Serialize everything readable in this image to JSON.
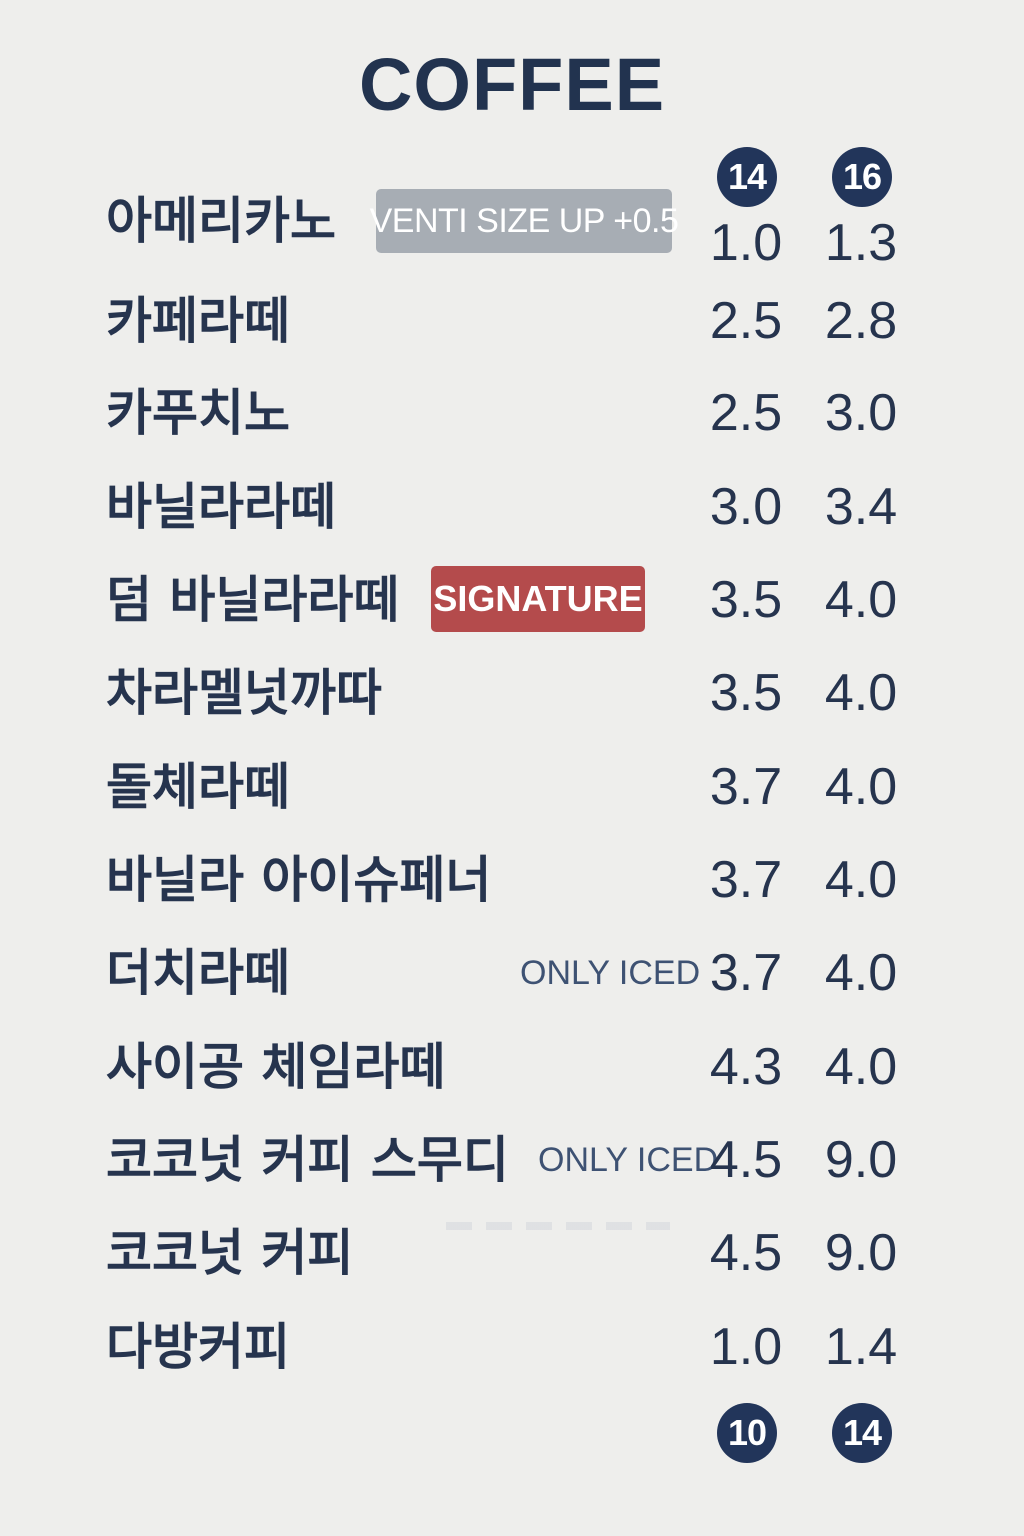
{
  "menu": {
    "title": "COFFEE",
    "size_headers_top": [
      "14",
      "16"
    ],
    "size_headers_bottom": [
      "10",
      "14"
    ],
    "venti_badge": "VENTI SIZE UP +0.5",
    "signature_badge": "SIGNATURE",
    "only_iced_label": "ONLY ICED",
    "items": [
      {
        "name": "아메리카노",
        "price_a": "1.0",
        "price_b": "1.3"
      },
      {
        "name": "카페라떼",
        "price_a": "2.5",
        "price_b": "2.8"
      },
      {
        "name": "카푸치노",
        "price_a": "2.5",
        "price_b": "3.0"
      },
      {
        "name": "바닐라라떼",
        "price_a": "3.0",
        "price_b": "3.4"
      },
      {
        "name": "덤 바닐라라떼",
        "price_a": "3.5",
        "price_b": "4.0"
      },
      {
        "name": "차라멜넛까따",
        "price_a": "3.5",
        "price_b": "4.0"
      },
      {
        "name": "돌체라떼",
        "price_a": "3.7",
        "price_b": "4.0"
      },
      {
        "name": "바닐라 아이슈페너",
        "price_a": "3.7",
        "price_b": "4.0"
      },
      {
        "name": "더치라떼",
        "price_a": "3.7",
        "price_b": "4.0"
      },
      {
        "name": "사이공 체임라떼",
        "price_a": "4.3",
        "price_b": "4.0"
      },
      {
        "name": "코코넛 커피 스무디",
        "price_a": "4.5",
        "price_b": "9.0"
      },
      {
        "name": "코코넛 커피",
        "price_a": "4.5",
        "price_b": "9.0"
      },
      {
        "name": "다방커피",
        "price_a": "1.0",
        "price_b": "1.4"
      }
    ]
  }
}
